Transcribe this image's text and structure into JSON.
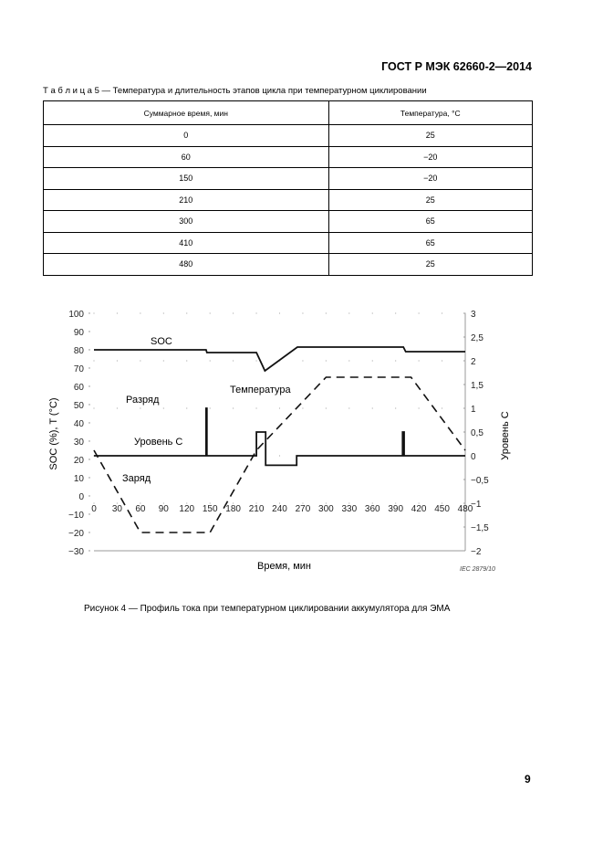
{
  "header": {
    "doc_id": "ГОСТ Р МЭК 62660-2—2014"
  },
  "table": {
    "caption": "Т а б л и ц а  5 — Температура и длительность этапов цикла при температурном циклировании",
    "columns": [
      "Суммарное время, мин",
      "Температура, °С"
    ],
    "rows": [
      [
        "0",
        "25"
      ],
      [
        "60",
        "−20"
      ],
      [
        "150",
        "−20"
      ],
      [
        "210",
        "25"
      ],
      [
        "300",
        "65"
      ],
      [
        "410",
        "65"
      ],
      [
        "480",
        "25"
      ]
    ]
  },
  "chart_data": {
    "type": "line",
    "xlabel": "Время, мин",
    "ylabel_left": "SOC (%), T (°C)",
    "ylabel_right": "Уровень С",
    "xlim": [
      0,
      480
    ],
    "ylim_left": [
      -30,
      100
    ],
    "ylim_right": [
      -2,
      3
    ],
    "x_ticks": [
      "0",
      "30",
      "60",
      "90",
      "120",
      "150",
      "180",
      "210",
      "240",
      "270",
      "300",
      "330",
      "360",
      "390",
      "420",
      "450",
      "480"
    ],
    "y_left_ticks": [
      "100",
      "90",
      "80",
      "70",
      "60",
      "50",
      "40",
      "30",
      "20",
      "10",
      "0",
      "−10",
      "−20",
      "−30"
    ],
    "y_right_ticks": [
      "3",
      "2,5",
      "2",
      "1,5",
      "1",
      "0,5",
      "0",
      "−0,5",
      "−1",
      "−1,5",
      "−2"
    ],
    "annotations": {
      "soc": "SOC",
      "discharge": "Разряд",
      "temperature": "Температура",
      "c_level": "Уровень С",
      "charge": "Заряд",
      "source": "IEC  2879/10"
    },
    "series": [
      {
        "name": "SOC",
        "axis": "left",
        "style": "solid",
        "points": [
          [
            0,
            80
          ],
          [
            145,
            80
          ],
          [
            146,
            78.5
          ],
          [
            210,
            78.5
          ],
          [
            221,
            68.5
          ],
          [
            263,
            81.5
          ],
          [
            400,
            81.5
          ],
          [
            403,
            79
          ],
          [
            480,
            79
          ]
        ]
      },
      {
        "name": "Температура",
        "axis": "left",
        "style": "dashed",
        "points": [
          [
            0,
            25
          ],
          [
            60,
            -20
          ],
          [
            150,
            -20
          ],
          [
            210,
            25
          ],
          [
            300,
            65
          ],
          [
            410,
            65
          ],
          [
            480,
            25
          ]
        ]
      },
      {
        "name": "Уровень С",
        "axis": "right",
        "style": "solid",
        "points": [
          [
            0,
            0
          ],
          [
            145,
            0
          ],
          [
            145,
            1
          ],
          [
            146,
            1
          ],
          [
            146,
            0
          ],
          [
            210,
            0
          ],
          [
            210,
            0.5
          ],
          [
            222,
            0.5
          ],
          [
            222,
            -0.2
          ],
          [
            262,
            -0.2
          ],
          [
            262,
            0
          ],
          [
            399,
            0
          ],
          [
            399,
            0.5
          ],
          [
            401,
            0.5
          ],
          [
            401,
            0
          ],
          [
            480,
            0
          ]
        ]
      }
    ]
  },
  "figure": {
    "caption": "Рисунок 4 — Профиль тока при температурном циклировании аккумулятора для ЭМА"
  },
  "page_number": "9"
}
